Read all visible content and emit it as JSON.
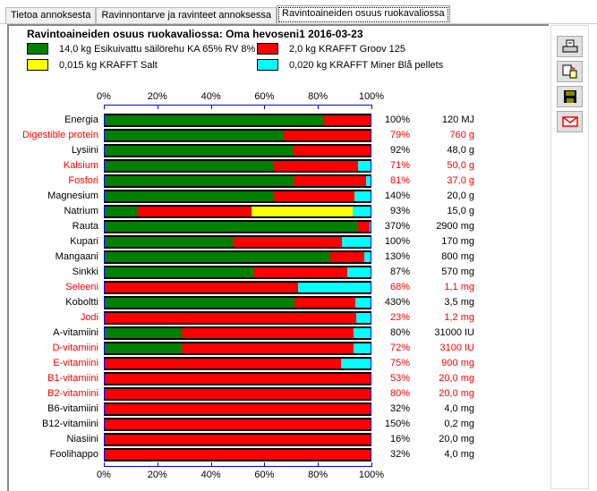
{
  "tabs": [
    {
      "label": "Tietoa annoksesta"
    },
    {
      "label": "Ravinnontarve ja ravinteet annoksessa"
    },
    {
      "label": "Ravintoaineiden osuus ruokavaliossa",
      "active": true
    }
  ],
  "toolbar": [
    {
      "icon": "print-icon"
    },
    {
      "icon": "print-preview-icon"
    },
    {
      "icon": "save-icon"
    },
    {
      "icon": "email-icon"
    }
  ],
  "colors": {
    "green": "#008000",
    "red": "#ff0000",
    "yellow": "#ffff00",
    "cyan": "#00ffff",
    "deficit_text": "#ff0000"
  },
  "chart_data": {
    "type": "bar",
    "stacked": true,
    "orientation": "horizontal",
    "title": "Ravintoaineiden osuus ruokavaliossa: Oma hevoseni1 2016-03-23",
    "xlim": [
      0,
      100
    ],
    "ticks": [
      "0%",
      "20%",
      "40%",
      "60%",
      "80%",
      "100%"
    ],
    "series": [
      {
        "name": "14,0 kg Esikuivattu säilörehu KA 65% RV 8%",
        "color": "#008000"
      },
      {
        "name": "2,0 kg KRAFFT Groov 125",
        "color": "#ff0000"
      },
      {
        "name": "0,015 kg KRAFFT Salt",
        "color": "#ffff00"
      },
      {
        "name": "0,020 kg KRAFFT Miner Blå pellets",
        "color": "#00ffff"
      }
    ],
    "rows": [
      {
        "label": "Energia",
        "shares": [
          82.5,
          17.5,
          0,
          0
        ],
        "pct": "100%",
        "amount": "120 MJ",
        "warn": false
      },
      {
        "label": "Digestible protein",
        "shares": [
          66.9,
          33.1,
          0,
          0
        ],
        "pct": "79%",
        "amount": "760 g",
        "warn": true
      },
      {
        "label": "Lysiini",
        "shares": [
          70.6,
          29.4,
          0,
          0
        ],
        "pct": "92%",
        "amount": "48,0 g",
        "warn": false
      },
      {
        "label": "Kalsium",
        "shares": [
          63.2,
          32.1,
          0,
          4.7
        ],
        "pct": "71%",
        "amount": "50,0 g",
        "warn": true
      },
      {
        "label": "Fosfori",
        "shares": [
          71.2,
          27.1,
          0,
          1.7
        ],
        "pct": "81%",
        "amount": "37,0 g",
        "warn": true
      },
      {
        "label": "Magnesium",
        "shares": [
          63.8,
          30.1,
          0,
          6.1
        ],
        "pct": "140%",
        "amount": "20,0 g",
        "warn": false
      },
      {
        "label": "Natrium",
        "shares": [
          12.1,
          43.2,
          38.1,
          6.6
        ],
        "pct": "93%",
        "amount": "15,0 g",
        "warn": false
      },
      {
        "label": "Rauta",
        "shares": [
          95.3,
          4.3,
          0,
          0.4
        ],
        "pct": "370%",
        "amount": "2900 mg",
        "warn": false
      },
      {
        "label": "Kupari",
        "shares": [
          48.2,
          41.0,
          0,
          10.8
        ],
        "pct": "100%",
        "amount": "170 mg",
        "warn": false
      },
      {
        "label": "Mangaani",
        "shares": [
          84.8,
          12.8,
          0,
          2.4
        ],
        "pct": "130%",
        "amount": "800 mg",
        "warn": false
      },
      {
        "label": "Sinkki",
        "shares": [
          55.8,
          35.4,
          0,
          8.8
        ],
        "pct": "87%",
        "amount": "570 mg",
        "warn": false
      },
      {
        "label": "Seleeni",
        "shares": [
          0,
          72.6,
          0,
          27.4
        ],
        "pct": "68%",
        "amount": "1,1 mg",
        "warn": true
      },
      {
        "label": "Koboltti",
        "shares": [
          71.4,
          22.9,
          0,
          5.7
        ],
        "pct": "430%",
        "amount": "3,5 mg",
        "warn": false
      },
      {
        "label": "Jodi",
        "shares": [
          0,
          94.6,
          0,
          5.4
        ],
        "pct": "23%",
        "amount": "1,2 mg",
        "warn": true
      },
      {
        "label": "A-vitamiini",
        "shares": [
          29.1,
          64.5,
          0,
          6.4
        ],
        "pct": "80%",
        "amount": "31000 IU",
        "warn": false
      },
      {
        "label": "D-vitamiini",
        "shares": [
          29.1,
          64.5,
          0,
          6.4
        ],
        "pct": "72%",
        "amount": "3100 IU",
        "warn": true
      },
      {
        "label": "E-vitamiini",
        "shares": [
          0,
          88.9,
          0,
          11.1
        ],
        "pct": "75%",
        "amount": "900 mg",
        "warn": true
      },
      {
        "label": "B1-vitamiini",
        "shares": [
          0,
          100,
          0,
          0
        ],
        "pct": "53%",
        "amount": "20,0 mg",
        "warn": true
      },
      {
        "label": "B2-vitamiini",
        "shares": [
          0,
          100,
          0,
          0
        ],
        "pct": "80%",
        "amount": "20,0 mg",
        "warn": true
      },
      {
        "label": "B6-vitamiini",
        "shares": [
          0,
          100,
          0,
          0
        ],
        "pct": "32%",
        "amount": "4,0 mg",
        "warn": false
      },
      {
        "label": "B12-vitamiini",
        "shares": [
          0,
          100,
          0,
          0
        ],
        "pct": "150%",
        "amount": "0,2 mg",
        "warn": false
      },
      {
        "label": "Niasiini",
        "shares": [
          0,
          100,
          0,
          0
        ],
        "pct": "16%",
        "amount": "20,0 mg",
        "warn": false
      },
      {
        "label": "Foolihappo",
        "shares": [
          0,
          100,
          0,
          0
        ],
        "pct": "32%",
        "amount": "4,0 mg",
        "warn": false
      }
    ]
  }
}
